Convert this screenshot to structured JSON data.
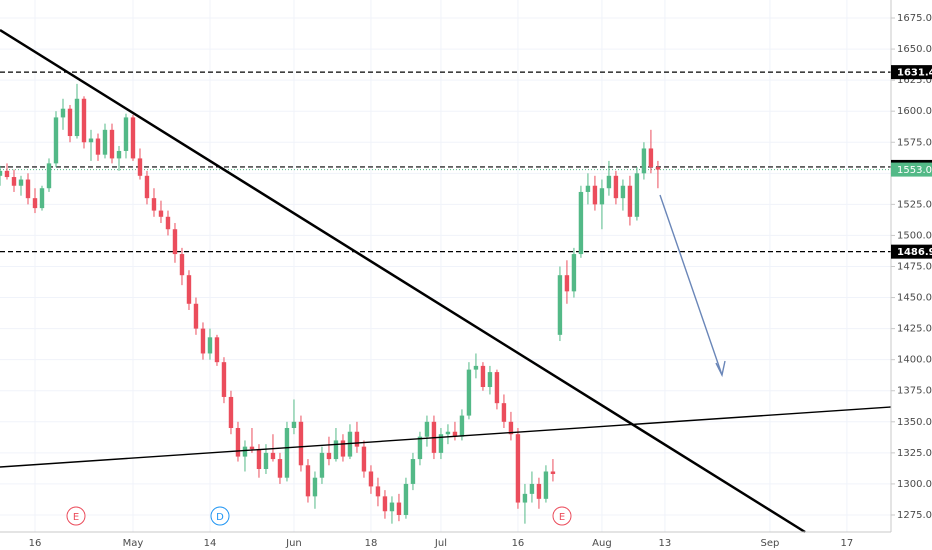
{
  "chart_data": {
    "type": "candlestick",
    "ohlc": [
      [
        1548,
        1556,
        1540,
        1552
      ],
      [
        1552,
        1558,
        1545,
        1547
      ],
      [
        1547,
        1553,
        1535,
        1540
      ],
      [
        1540,
        1548,
        1532,
        1545
      ],
      [
        1545,
        1550,
        1525,
        1530
      ],
      [
        1530,
        1538,
        1518,
        1522
      ],
      [
        1522,
        1540,
        1520,
        1538
      ],
      [
        1538,
        1562,
        1535,
        1558
      ],
      [
        1558,
        1600,
        1555,
        1595
      ],
      [
        1595,
        1610,
        1585,
        1602
      ],
      [
        1602,
        1605,
        1575,
        1580
      ],
      [
        1580,
        1622,
        1578,
        1610
      ],
      [
        1610,
        1612,
        1570,
        1575
      ],
      [
        1575,
        1585,
        1560,
        1578
      ],
      [
        1578,
        1582,
        1560,
        1565
      ],
      [
        1565,
        1590,
        1562,
        1585
      ],
      [
        1585,
        1590,
        1558,
        1562
      ],
      [
        1562,
        1572,
        1552,
        1568
      ],
      [
        1568,
        1598,
        1562,
        1595
      ],
      [
        1595,
        1597,
        1560,
        1562
      ],
      [
        1562,
        1570,
        1545,
        1548
      ],
      [
        1548,
        1552,
        1525,
        1530
      ],
      [
        1530,
        1538,
        1515,
        1520
      ],
      [
        1520,
        1528,
        1510,
        1515
      ],
      [
        1515,
        1520,
        1500,
        1505
      ],
      [
        1505,
        1510,
        1478,
        1485
      ],
      [
        1485,
        1490,
        1460,
        1468
      ],
      [
        1468,
        1472,
        1440,
        1445
      ],
      [
        1445,
        1450,
        1420,
        1425
      ],
      [
        1425,
        1430,
        1400,
        1405
      ],
      [
        1405,
        1425,
        1400,
        1418
      ],
      [
        1418,
        1420,
        1395,
        1398
      ],
      [
        1398,
        1402,
        1365,
        1370
      ],
      [
        1370,
        1375,
        1340,
        1345
      ],
      [
        1345,
        1350,
        1318,
        1322
      ],
      [
        1322,
        1335,
        1310,
        1330
      ],
      [
        1330,
        1345,
        1325,
        1328
      ],
      [
        1328,
        1332,
        1305,
        1312
      ],
      [
        1312,
        1332,
        1308,
        1325
      ],
      [
        1325,
        1340,
        1318,
        1320
      ],
      [
        1320,
        1325,
        1300,
        1305
      ],
      [
        1305,
        1350,
        1302,
        1345
      ],
      [
        1345,
        1368,
        1340,
        1350
      ],
      [
        1350,
        1355,
        1310,
        1315
      ],
      [
        1315,
        1320,
        1285,
        1290
      ],
      [
        1290,
        1310,
        1280,
        1305
      ],
      [
        1305,
        1330,
        1300,
        1325
      ],
      [
        1325,
        1338,
        1315,
        1320
      ],
      [
        1320,
        1345,
        1318,
        1335
      ],
      [
        1335,
        1340,
        1318,
        1322
      ],
      [
        1322,
        1348,
        1320,
        1342
      ],
      [
        1342,
        1350,
        1325,
        1330
      ],
      [
        1330,
        1335,
        1305,
        1310
      ],
      [
        1310,
        1315,
        1292,
        1298
      ],
      [
        1298,
        1305,
        1282,
        1290
      ],
      [
        1290,
        1295,
        1272,
        1278
      ],
      [
        1278,
        1290,
        1268,
        1285
      ],
      [
        1285,
        1292,
        1270,
        1275
      ],
      [
        1275,
        1305,
        1272,
        1300
      ],
      [
        1300,
        1325,
        1295,
        1320
      ],
      [
        1320,
        1342,
        1315,
        1338
      ],
      [
        1338,
        1355,
        1330,
        1350
      ],
      [
        1350,
        1355,
        1320,
        1325
      ],
      [
        1325,
        1345,
        1320,
        1340
      ],
      [
        1340,
        1348,
        1332,
        1342
      ],
      [
        1342,
        1350,
        1335,
        1338
      ],
      [
        1338,
        1360,
        1335,
        1355
      ],
      [
        1355,
        1398,
        1352,
        1392
      ],
      [
        1392,
        1405,
        1385,
        1395
      ],
      [
        1395,
        1398,
        1375,
        1378
      ],
      [
        1378,
        1395,
        1372,
        1390
      ],
      [
        1390,
        1392,
        1360,
        1365
      ],
      [
        1365,
        1372,
        1345,
        1350
      ],
      [
        1350,
        1358,
        1335,
        1340
      ],
      [
        1340,
        1345,
        1280,
        1285
      ],
      [
        1285,
        1300,
        1268,
        1292
      ],
      [
        1292,
        1310,
        1285,
        1300
      ],
      [
        1300,
        1305,
        1280,
        1288
      ],
      [
        1288,
        1315,
        1285,
        1310
      ],
      [
        1310,
        1320,
        1302,
        1308
      ],
      [
        1420,
        1475,
        1415,
        1468
      ],
      [
        1468,
        1480,
        1445,
        1455
      ],
      [
        1455,
        1490,
        1450,
        1485
      ],
      [
        1485,
        1540,
        1482,
        1535
      ],
      [
        1535,
        1550,
        1525,
        1540
      ],
      [
        1540,
        1548,
        1520,
        1525
      ],
      [
        1525,
        1545,
        1505,
        1538
      ],
      [
        1538,
        1560,
        1532,
        1548
      ],
      [
        1548,
        1552,
        1525,
        1530
      ],
      [
        1530,
        1545,
        1520,
        1540
      ],
      [
        1540,
        1548,
        1508,
        1515
      ],
      [
        1515,
        1555,
        1512,
        1550
      ],
      [
        1550,
        1575,
        1545,
        1570
      ],
      [
        1570,
        1585,
        1550,
        1555
      ],
      [
        1555,
        1560,
        1538,
        1553
      ]
    ],
    "up_color": "#53b987",
    "down_color": "#eb4d5c",
    "xlim": [
      0,
      127.3
    ],
    "xticks": [
      {
        "value": 5,
        "label": "16"
      },
      {
        "value": 19,
        "label": "May"
      },
      {
        "value": 30,
        "label": "14"
      },
      {
        "value": 42,
        "label": "Jun"
      },
      {
        "value": 53,
        "label": "18"
      },
      {
        "value": 63,
        "label": "Jul"
      },
      {
        "value": 74,
        "label": "16"
      },
      {
        "value": 86,
        "label": "Aug"
      },
      {
        "value": 95,
        "label": "13"
      },
      {
        "value": 110,
        "label": "Sep"
      },
      {
        "value": 121,
        "label": "17"
      }
    ],
    "ylim": [
      1261.3,
      1689.5
    ],
    "yticks": [
      {
        "value": 1275,
        "label": "1275.00"
      },
      {
        "value": 1300,
        "label": "1300.00"
      },
      {
        "value": 1325,
        "label": "1325.00"
      },
      {
        "value": 1350,
        "label": "1350.00"
      },
      {
        "value": 1375,
        "label": "1375.00"
      },
      {
        "value": 1400,
        "label": "1400.00"
      },
      {
        "value": 1425,
        "label": "1425.00"
      },
      {
        "value": 1450,
        "label": "1450.00"
      },
      {
        "value": 1475,
        "label": "1475.00"
      },
      {
        "value": 1500,
        "label": "1500.00"
      },
      {
        "value": 1525,
        "label": "1525.00"
      },
      {
        "value": 1550,
        "label": "1550.00"
      },
      {
        "value": 1575,
        "label": "1575.00"
      },
      {
        "value": 1600,
        "label": "1600.00"
      },
      {
        "value": 1625,
        "label": "1625.00"
      },
      {
        "value": 1650,
        "label": "1650.00"
      },
      {
        "value": 1675,
        "label": "1675.00"
      }
    ],
    "grid": true,
    "levels": [
      1631.45,
      1555.15,
      1486.95
    ],
    "level_color": "#000000",
    "last_price": {
      "value": 1553,
      "label": "1553.00"
    },
    "events": [
      "E",
      "D",
      "E"
    ]
  }
}
